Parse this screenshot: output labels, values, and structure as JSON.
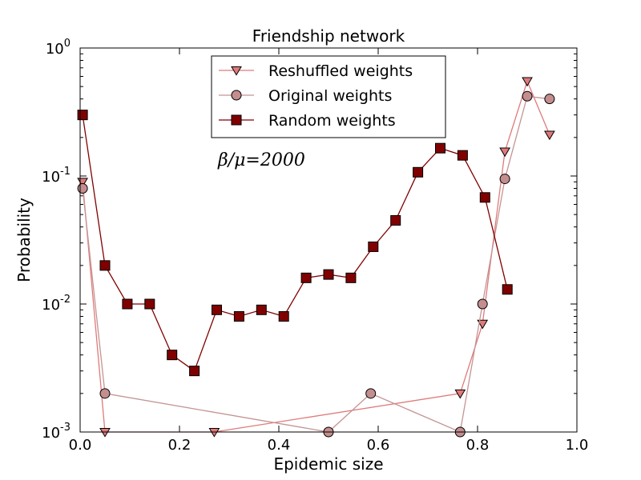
{
  "chart_data": {
    "type": "line",
    "title": "Friendship network",
    "xlabel": "Epidemic size",
    "ylabel": "Probability",
    "xlim": [
      0.0,
      1.0
    ],
    "ylim": [
      0.001,
      1.0
    ],
    "yscale": "log",
    "x_ticks": [
      "0.0",
      "0.2",
      "0.4",
      "0.6",
      "0.8",
      "1.0"
    ],
    "y_ticks": [
      {
        "base": "10",
        "exp": "0",
        "value": 1.0
      },
      {
        "base": "10",
        "exp": "-1",
        "value": 0.1
      },
      {
        "base": "10",
        "exp": "-2",
        "value": 0.01
      },
      {
        "base": "10",
        "exp": "-3",
        "value": 0.001
      }
    ],
    "annotation": "β/μ=2000",
    "legend_position": "top-center",
    "series": [
      {
        "name": "Reshuffled weights",
        "marker": "triangle-down",
        "color": "#e07a7a",
        "line_color": "#e07a7a",
        "points": [
          [
            0.005,
            0.09
          ],
          [
            0.05,
            0.001
          ],
          [
            0.27,
            0.001
          ],
          [
            0.765,
            0.002
          ],
          [
            0.81,
            0.007
          ],
          [
            0.855,
            0.155
          ],
          [
            0.9,
            0.55
          ],
          [
            0.945,
            0.21
          ]
        ]
      },
      {
        "name": "Original weights",
        "marker": "circle",
        "color": "#c48e8e",
        "line_color": "#c49494",
        "points": [
          [
            0.005,
            0.08
          ],
          [
            0.05,
            0.002
          ],
          [
            0.5,
            0.001
          ],
          [
            0.585,
            0.002
          ],
          [
            0.765,
            0.001
          ],
          [
            0.81,
            0.01
          ],
          [
            0.855,
            0.095
          ],
          [
            0.9,
            0.42
          ],
          [
            0.945,
            0.4
          ]
        ]
      },
      {
        "name": "Random weights",
        "marker": "square",
        "color": "#800000",
        "line_color": "#800000",
        "points": [
          [
            0.005,
            0.3
          ],
          [
            0.05,
            0.02
          ],
          [
            0.095,
            0.01
          ],
          [
            0.14,
            0.01
          ],
          [
            0.185,
            0.004
          ],
          [
            0.23,
            0.003
          ],
          [
            0.275,
            0.009
          ],
          [
            0.32,
            0.008
          ],
          [
            0.365,
            0.009
          ],
          [
            0.41,
            0.008
          ],
          [
            0.455,
            0.016
          ],
          [
            0.5,
            0.017
          ],
          [
            0.545,
            0.016
          ],
          [
            0.59,
            0.028
          ],
          [
            0.635,
            0.045
          ],
          [
            0.68,
            0.107
          ],
          [
            0.725,
            0.165
          ],
          [
            0.77,
            0.145
          ],
          [
            0.815,
            0.068
          ],
          [
            0.86,
            0.013
          ]
        ]
      }
    ]
  }
}
